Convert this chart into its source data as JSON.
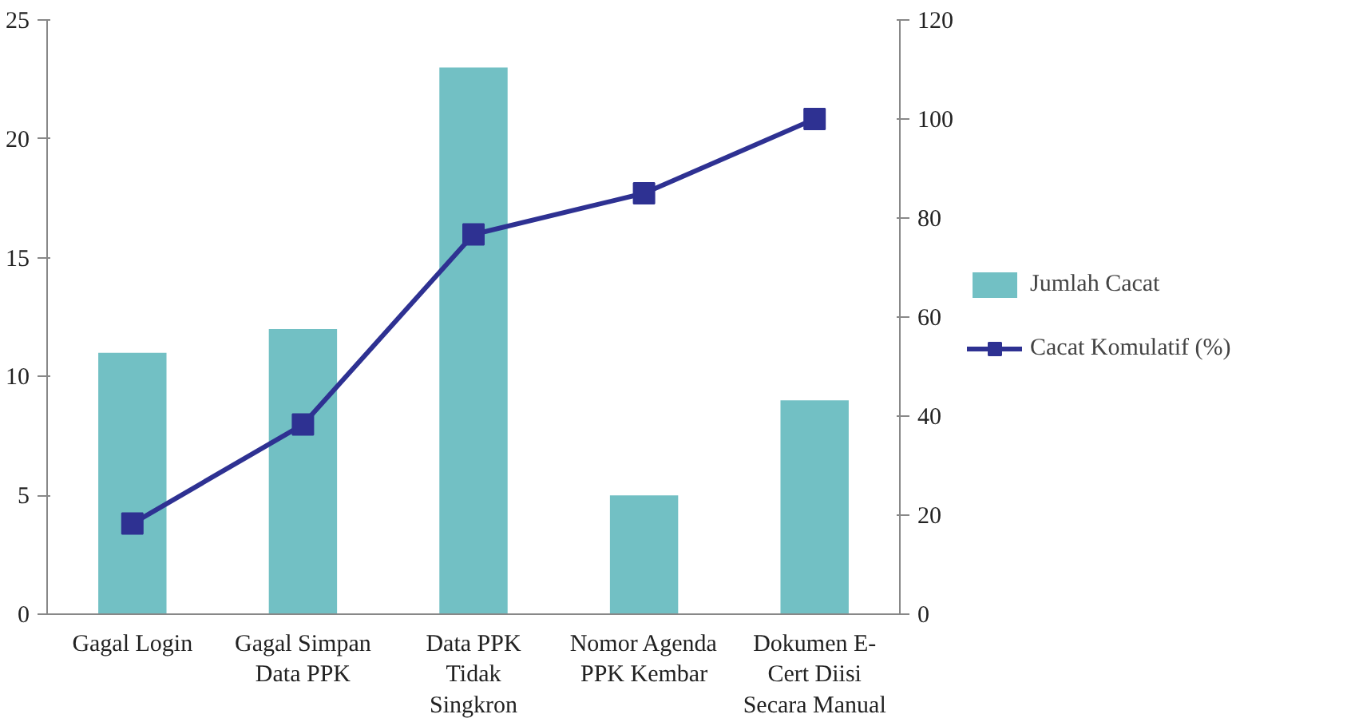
{
  "chart_data": {
    "type": "bar",
    "categories": [
      "Gagal Login",
      "Gagal Simpan\nData PPK",
      "Data PPK\nTidak\nSingkron",
      "Nomor Agenda\nPPK Kembar",
      "Dokumen E-\nCert Diisi\nSecara Manual"
    ],
    "series": [
      {
        "name": "Jumlah Cacat",
        "color": "#72c0c4",
        "values": [
          11,
          12,
          23,
          5,
          9
        ]
      },
      {
        "name": "Cacat Komulatif (%)",
        "type": "line",
        "axis": "y2",
        "color": "#2e3192",
        "marker": "square",
        "values": [
          18.3,
          38.3,
          76.7,
          85,
          100
        ]
      }
    ],
    "ylim": [
      0,
      25
    ],
    "yticks": [
      0,
      5,
      10,
      15,
      20,
      25
    ],
    "y2lim": [
      0,
      120
    ],
    "y2ticks": [
      0,
      20,
      40,
      60,
      80,
      100,
      120
    ],
    "grid": false,
    "legend": "right"
  }
}
